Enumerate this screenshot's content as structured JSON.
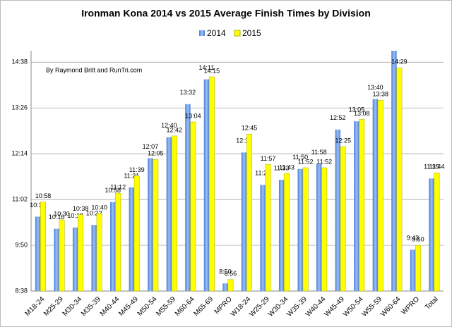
{
  "chart_data": {
    "type": "bar",
    "title": "Ironman Kona 2014 vs 2015 Average Finish Times by Division",
    "annotation": "By Raymond Britt and RunTri.com",
    "categories": [
      "M18-24",
      "M25-29",
      "M30-34",
      "M35-39",
      "M40-44",
      "M45-49",
      "M50-54",
      "M55-59",
      "M60-64",
      "M65-69",
      "MPRO",
      "W18-24",
      "W25-29",
      "W30-34",
      "W35-39",
      "W40-44",
      "W45-49",
      "W50-54",
      "W55-59",
      "W60-64",
      "WPRO",
      "Total"
    ],
    "series": [
      {
        "name": "2014",
        "color": "#6f9fe8",
        "values": [
          635,
          616,
          618,
          622,
          658,
          681,
          727,
          760,
          812,
          851,
          530,
          736,
          685,
          693,
          710,
          718,
          772,
          785,
          820,
          896,
          583,
          695
        ],
        "value_labels": [
          "10:35",
          "10:16",
          "10:18",
          "10:22",
          "10:58",
          "11:21",
          "12:07",
          "12:40",
          "13:32",
          "14:11",
          "8:50",
          "12:16",
          "11:25",
          "11:33",
          "11:50",
          "11:58",
          "12:52",
          "13:05",
          "13:40",
          null,
          "9:43",
          "11:35"
        ]
      },
      {
        "name": "2015",
        "color": "#ffff00",
        "values": [
          658,
          630,
          638,
          640,
          672,
          699,
          725,
          762,
          784,
          855,
          536,
          765,
          717,
          703,
          712,
          712,
          745,
          788,
          818,
          869,
          590,
          704
        ],
        "value_labels": [
          "10:58",
          "10:30",
          "10:38",
          "10:40",
          "11:12",
          "11:39",
          "12:05",
          "12:42",
          "13:04",
          "14:15",
          "8:56",
          "12:45",
          "11:57",
          "11:43",
          "11:52",
          "11:52",
          "12:25",
          "13:08",
          "13:38",
          "14:29",
          "9:50",
          "11:44"
        ]
      }
    ],
    "ylim": [
      518,
      896
    ],
    "yticks": [
      {
        "value": 518,
        "label": "8:38"
      },
      {
        "value": 590,
        "label": "9:50"
      },
      {
        "value": 662,
        "label": "11:02"
      },
      {
        "value": 734,
        "label": "12:14"
      },
      {
        "value": 806,
        "label": "13:26"
      },
      {
        "value": 878,
        "label": "14:38"
      }
    ],
    "grid": true,
    "legend": "top"
  }
}
